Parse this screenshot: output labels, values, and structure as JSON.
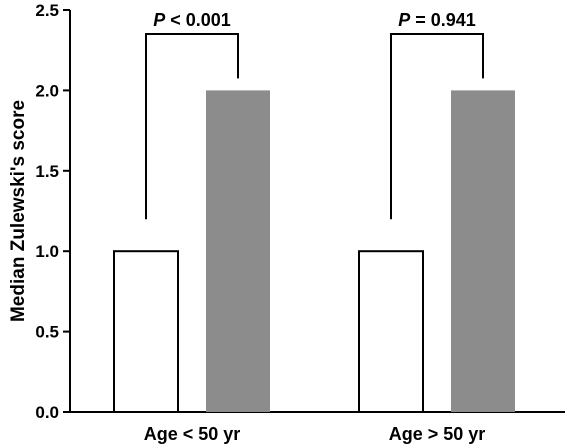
{
  "chart_data": {
    "type": "bar",
    "title": "",
    "xlabel": "",
    "ylabel": "Median Zulewski's score",
    "ylim": [
      0,
      2.5
    ],
    "yticks": [
      "0.0",
      "0.5",
      "1.0",
      "1.5",
      "2.0",
      "2.5"
    ],
    "categories": [
      "Age < 50 yr",
      "Age > 50 yr"
    ],
    "series": [
      {
        "values": [
          1.0,
          1.0
        ],
        "color": "#ffffff"
      },
      {
        "values": [
          2.0,
          2.0
        ],
        "color": "#8c8c8c"
      }
    ],
    "annotations": [
      {
        "italic": "P",
        "text": " < 0.001"
      },
      {
        "italic": "P",
        "text": " = 0.941"
      }
    ],
    "grid": false,
    "legend": "none"
  }
}
